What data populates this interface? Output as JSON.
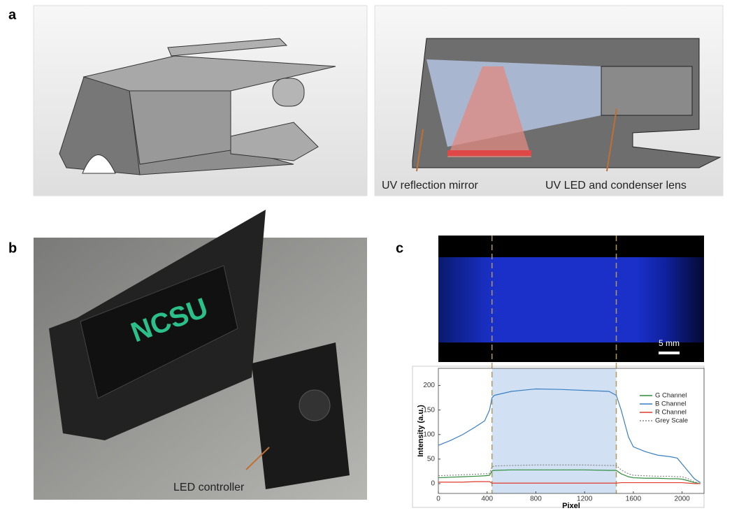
{
  "panels": {
    "a": "a",
    "b": "b",
    "c": "c"
  },
  "annotations": {
    "mirror": "UV reflection mirror",
    "led": "UV LED and condenser lens",
    "controller": "LED controller",
    "scale_bar": "5 mm"
  },
  "chart_data": {
    "type": "line",
    "xlabel": "Pixel",
    "ylabel": "Intensity (a.u.)",
    "x": [
      0,
      100,
      200,
      300,
      380,
      420,
      440,
      460,
      600,
      800,
      1000,
      1200,
      1400,
      1460,
      1500,
      1560,
      1600,
      1700,
      1800,
      1900,
      1960,
      2000,
      2050,
      2100,
      2150
    ],
    "series": [
      {
        "name": "G Channel",
        "color": "#2e8b3a",
        "values": [
          12,
          13,
          14,
          15,
          16,
          17,
          26,
          27,
          28,
          28,
          28,
          28,
          27,
          27,
          20,
          14,
          12,
          11,
          11,
          10,
          10,
          9,
          6,
          2,
          0
        ]
      },
      {
        "name": "B Channel",
        "color": "#3a7fc1",
        "values": [
          78,
          88,
          100,
          115,
          128,
          150,
          175,
          180,
          188,
          193,
          192,
          190,
          188,
          180,
          150,
          95,
          75,
          65,
          58,
          55,
          52,
          40,
          25,
          10,
          2
        ]
      },
      {
        "name": "R Channel",
        "color": "#e03a2a",
        "values": [
          3,
          3,
          3,
          4,
          4,
          4,
          1,
          1,
          1,
          1,
          1,
          1,
          1,
          1,
          2,
          2,
          2,
          2,
          2,
          2,
          2,
          2,
          1,
          0,
          0
        ]
      },
      {
        "name": "Grey Scale",
        "color": "#888888",
        "dashed": true,
        "values": [
          16,
          17,
          18,
          19,
          20,
          21,
          34,
          36,
          37,
          38,
          38,
          38,
          37,
          37,
          28,
          20,
          17,
          16,
          15,
          15,
          14,
          14,
          10,
          4,
          0
        ]
      }
    ],
    "highlight": [
      440,
      1460
    ],
    "xlim": [
      0,
      2180
    ],
    "ylim": [
      -20,
      235
    ],
    "xticks": [
      0,
      400,
      800,
      1200,
      1600,
      2000
    ],
    "yticks": [
      0,
      50,
      100,
      150,
      200
    ],
    "legend": "upper right"
  }
}
